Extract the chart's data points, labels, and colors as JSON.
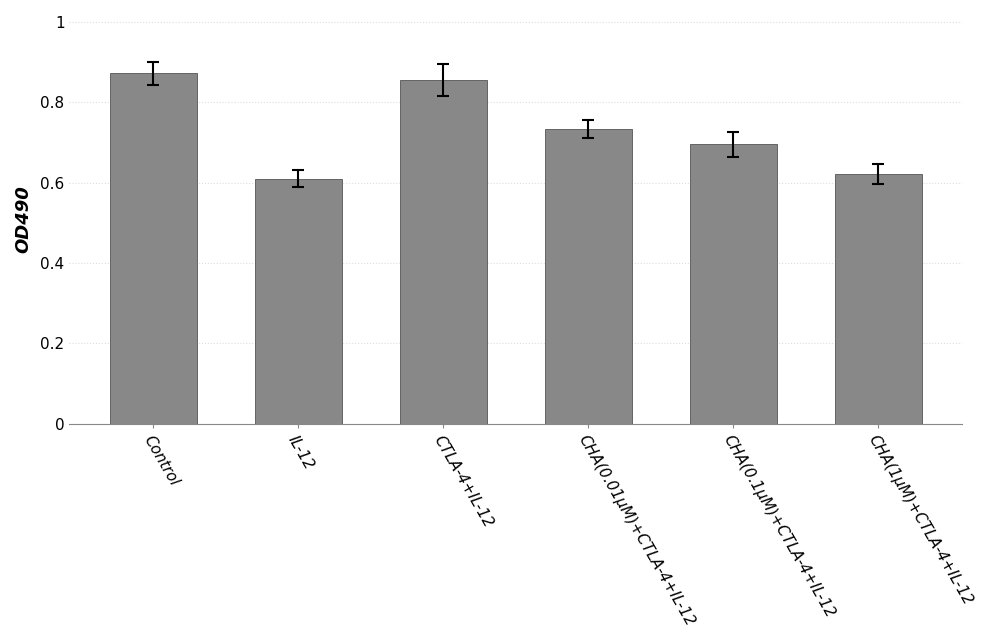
{
  "categories": [
    "Control",
    "IL-12",
    "CTLA-4+IL-12",
    "CHA(0.01μM)+CTLA-4+IL-12",
    "CHA(0.1μM)+CTLA-4+IL-12",
    "CHA(1μM)+CTLA-4+IL-12"
  ],
  "values": [
    0.872,
    0.61,
    0.856,
    0.733,
    0.695,
    0.622
  ],
  "errors": [
    0.028,
    0.022,
    0.04,
    0.022,
    0.03,
    0.025
  ],
  "bar_color": "#888888",
  "bar_edge_color": "#555555",
  "bar_width": 0.6,
  "ylabel": "OD490",
  "ylim": [
    0,
    1.02
  ],
  "yticks": [
    0,
    0.2,
    0.4,
    0.6,
    0.8,
    1.0
  ],
  "ytick_labels": [
    "0",
    "0.2",
    "0.4",
    "0.6",
    "0.8",
    "1"
  ],
  "background_color": "#ffffff",
  "grid_color": "#dddddd",
  "ylabel_fontsize": 13,
  "tick_fontsize": 11,
  "xlabel_rotation": -60,
  "figure_width": 10.0,
  "figure_height": 6.43
}
